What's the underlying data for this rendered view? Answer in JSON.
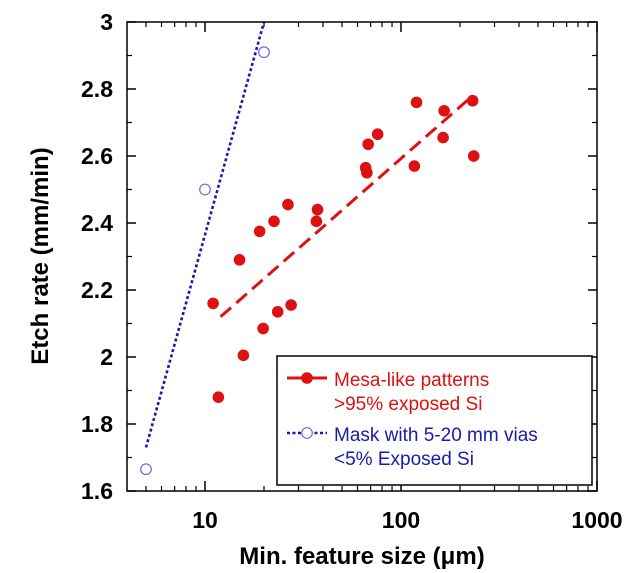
{
  "chart_data": {
    "type": "scatter",
    "xlabel": "Min. feature size (μm)",
    "ylabel": "Etch rate (mm/min)",
    "xscale": "log",
    "xlim": [
      4,
      1000
    ],
    "ylim": [
      1.6,
      3.0
    ],
    "x_ticks": [
      10,
      100,
      1000
    ],
    "x_tick_labels": [
      "10",
      "100",
      "1000"
    ],
    "y_ticks": [
      1.6,
      1.8,
      2.0,
      2.2,
      2.4,
      2.6,
      2.8,
      3.0
    ],
    "y_tick_labels": [
      "1.6",
      "1.8",
      "2",
      "2.2",
      "2.4",
      "2.6",
      "2.8",
      "3"
    ],
    "legend_position": "bottom-right",
    "series": [
      {
        "name": "Mesa-like patterns",
        "name_line2": ">95% exposed Si",
        "color": "#dd1111",
        "marker": "filled-circle",
        "points": [
          [
            11.0,
            2.16
          ],
          [
            11.7,
            1.88
          ],
          [
            15.0,
            2.29
          ],
          [
            15.7,
            2.005
          ],
          [
            19.0,
            2.375
          ],
          [
            19.8,
            2.085
          ],
          [
            22.5,
            2.405
          ],
          [
            23.5,
            2.135
          ],
          [
            26.5,
            2.455
          ],
          [
            27.5,
            2.155
          ],
          [
            37.0,
            2.405
          ],
          [
            37.5,
            2.44
          ],
          [
            66.0,
            2.565
          ],
          [
            67.0,
            2.55
          ],
          [
            68.0,
            2.635
          ],
          [
            76.0,
            2.665
          ],
          [
            117.0,
            2.57
          ],
          [
            120.0,
            2.76
          ],
          [
            164.0,
            2.655
          ],
          [
            166.0,
            2.735
          ],
          [
            232.0,
            2.765
          ],
          [
            235.0,
            2.6
          ]
        ],
        "fit": {
          "x": [
            12,
            232
          ],
          "y": [
            2.12,
            2.78
          ],
          "style": "dashed"
        }
      },
      {
        "name": "Mask with 5-20 mm vias",
        "name_line2": "<5% Exposed Si",
        "color": "#1a1aaa",
        "marker": "open-circle",
        "points": [
          [
            5.0,
            1.665
          ],
          [
            10.0,
            2.5
          ],
          [
            20.0,
            2.91
          ]
        ],
        "fit": {
          "x": [
            5.0,
            20.0
          ],
          "y": [
            1.73,
            3.0
          ],
          "style": "dotted"
        }
      }
    ]
  }
}
